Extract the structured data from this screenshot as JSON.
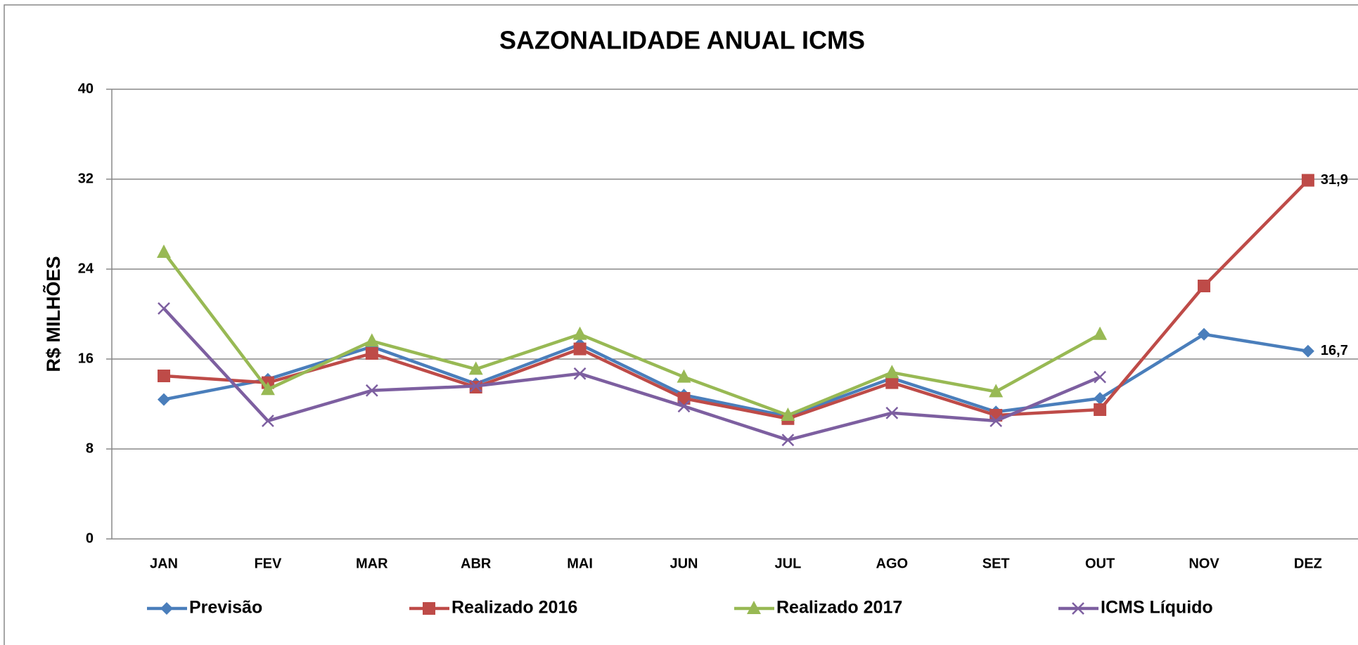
{
  "chart_data": {
    "type": "line",
    "title": "SAZONALIDADE ANUAL ICMS",
    "y_label": "R$ MILHÕES",
    "categories": [
      "JAN",
      "FEV",
      "MAR",
      "ABR",
      "MAI",
      "JUN",
      "JUL",
      "AGO",
      "SET",
      "OUT",
      "NOV",
      "DEZ"
    ],
    "series": [
      {
        "name": "Previsão",
        "color": "#4a7ebb",
        "marker": "diamond",
        "values": [
          12.4,
          14.2,
          17.1,
          13.8,
          17.3,
          12.8,
          10.9,
          14.3,
          11.3,
          12.5,
          18.2,
          16.7
        ],
        "value_labels": [
          null,
          null,
          null,
          null,
          null,
          null,
          null,
          null,
          null,
          null,
          null,
          "16,7"
        ]
      },
      {
        "name": "Realizado 2016",
        "color": "#be4b48",
        "marker": "square",
        "values": [
          14.5,
          13.9,
          16.5,
          13.5,
          16.9,
          12.5,
          10.7,
          13.9,
          11.0,
          11.5,
          22.5,
          31.9
        ],
        "value_labels": [
          null,
          null,
          null,
          null,
          null,
          null,
          null,
          null,
          null,
          null,
          null,
          "31,9"
        ]
      },
      {
        "name": "Realizado 2017",
        "color": "#98b954",
        "marker": "triangle",
        "values": [
          25.5,
          13.3,
          17.6,
          15.1,
          18.2,
          14.4,
          11.0,
          14.8,
          13.1,
          18.2,
          null,
          null
        ]
      },
      {
        "name": "ICMS Líquido",
        "color": "#7d5fa0",
        "marker": "x",
        "values": [
          20.5,
          10.5,
          13.2,
          13.6,
          14.7,
          11.8,
          8.8,
          11.2,
          10.5,
          14.4,
          null,
          null
        ]
      }
    ],
    "ylim": [
      0,
      40
    ],
    "yticks": [
      0,
      8,
      16,
      24,
      32,
      40
    ],
    "grid": true,
    "legend": "bottom"
  }
}
